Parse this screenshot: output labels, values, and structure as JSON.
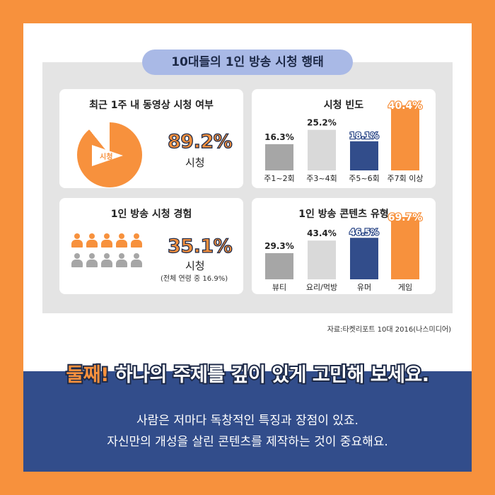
{
  "title": "10대들의 1인 방송 시청 행태",
  "colors": {
    "orange": "#f7913d",
    "navy": "#324d8b",
    "lightgray": "#d9d9d9",
    "gray": "#a6a6a6",
    "pill": "#a9b9e6"
  },
  "panels": {
    "watch": {
      "title": "최근 1주 내 동영상 시청 여부",
      "value": "89.2%",
      "caption": "시청",
      "icon_label": "시청",
      "percent": 89.2
    },
    "experience": {
      "title": "1인 방송 시청 경험",
      "value": "35.1%",
      "caption": "시청",
      "note": "(전체 연령 중 16.9%)",
      "filled_people": 5,
      "total_people": 10
    }
  },
  "chart_data": [
    {
      "type": "bar",
      "title": "시청 빈도",
      "categories": [
        "주1~2회",
        "주3~4회",
        "주5~6회",
        "주7회 이상"
      ],
      "values": [
        16.3,
        25.2,
        18.1,
        40.4
      ],
      "value_labels": [
        "16.3%",
        "25.2%",
        "18.1%",
        "40.4%"
      ],
      "bar_colors": [
        "#a6a6a6",
        "#d9d9d9",
        "#324d8b",
        "#f7913d"
      ],
      "ylim": [
        0,
        40.4
      ]
    },
    {
      "type": "bar",
      "title": "1인 방송 콘텐츠 유형",
      "categories": [
        "뷰티",
        "요리/먹방",
        "유머",
        "게임"
      ],
      "values": [
        29.3,
        43.4,
        46.5,
        69.7
      ],
      "value_labels": [
        "29.3%",
        "43.4%",
        "46.5%",
        "69.7%"
      ],
      "bar_colors": [
        "#a6a6a6",
        "#d9d9d9",
        "#324d8b",
        "#f7913d"
      ],
      "ylim": [
        0,
        69.7
      ]
    }
  ],
  "source": "자료:타켓리포트 10대 2016(나스미디어)",
  "headline": {
    "accent": "둘째!",
    "rest": " 하나의 주제를 깊이 있게 고민해 보세요."
  },
  "body_lines": [
    "사람은 저마다 독창적인 특징과 장점이 있죠.",
    "자신만의 개성을 살린 콘텐츠를 제작하는 것이 중요해요."
  ]
}
